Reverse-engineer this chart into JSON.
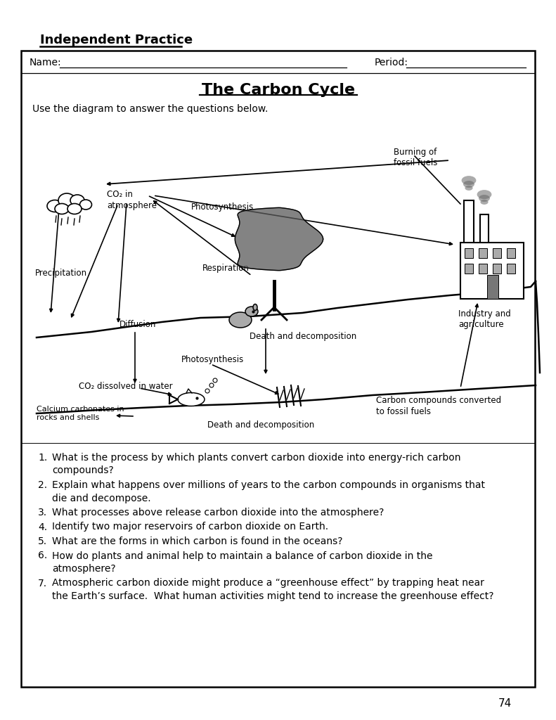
{
  "title": "The Carbon Cycle",
  "header": "Independent Practice",
  "subtitle": "Use the diagram to answer the questions below.",
  "name_label": "Name:",
  "period_label": "Period:",
  "page_number": "74",
  "questions": [
    "What is the process by which plants convert carbon dioxide into energy-rich carbon\ncompounds?",
    "Explain what happens over millions of years to the carbon compounds in organisms that\ndie and decompose.",
    "What processes above release carbon dioxide into the atmosphere?",
    "Identify two major reservoirs of carbon dioxide on Earth.",
    "What are the forms in which carbon is found in the oceans?",
    "How do plants and animal help to maintain a balance of carbon dioxide in the\natmosphere?",
    "Atmospheric carbon dioxide might produce a “greenhouse effect” by trapping heat near\nthe Earth’s surface.  What human activities might tend to increase the greenhouse effect?"
  ],
  "diagram_labels": {
    "burning_fossil_fuels": "Burning of\nfossil fuels",
    "co2_atmosphere": "CO₂ in\natmosphere",
    "photosynthesis_upper": "Photosynthesis",
    "precipitation": "Precipitation",
    "respiration": "Respiration",
    "industry_agriculture": "Industry and\nagriculture",
    "diffusion": "Diffusion",
    "death_decomposition_upper": "Death and decomposition",
    "photosynthesis_lower": "Photosynthesis",
    "co2_dissolved": "CO₂ dissolved in water",
    "calcium_carbonates": "Calcium carbonates in\nrocks and shells",
    "death_decomposition_lower": "Death and decomposition",
    "carbon_compounds": "Carbon compounds converted\nto fossil fuels"
  },
  "background_color": "#ffffff",
  "text_color": "#000000",
  "border_color": "#000000"
}
